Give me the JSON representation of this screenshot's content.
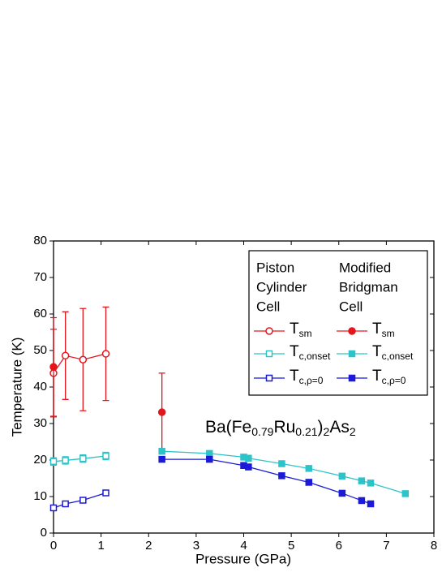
{
  "chart_data": {
    "type": "scatter",
    "xlabel": "Pressure (GPa)",
    "ylabel": "Temperature (K)",
    "xlim": [
      0,
      8
    ],
    "ylim": [
      0,
      80
    ],
    "xticks": [
      0,
      1,
      2,
      3,
      4,
      5,
      6,
      7,
      8
    ],
    "yticks": [
      0,
      10,
      20,
      30,
      40,
      50,
      60,
      70,
      80
    ],
    "annotation": {
      "parts": [
        "Ba(Fe",
        "0.79",
        "Ru",
        "0.21",
        ")",
        "2",
        "As",
        "2"
      ],
      "sub": [
        false,
        true,
        false,
        true,
        false,
        true,
        false,
        true
      ]
    },
    "legend_headers": [
      [
        "Piston",
        "Cylinder",
        "Cell"
      ],
      [
        "Modified",
        "Bridgman",
        "Cell"
      ]
    ],
    "series": [
      {
        "name": "T",
        "subscript": "sm",
        "group": 0,
        "marker": "circle",
        "filled": false,
        "line": true,
        "color": "#e3161c",
        "x": [
          0,
          0.25,
          0.62,
          1.1
        ],
        "values": [
          43.8,
          48.6,
          47.5,
          49.1
        ],
        "err": [
          12,
          12,
          14,
          12.8
        ]
      },
      {
        "name": "T",
        "subscript": "c,onset",
        "group": 0,
        "marker": "square",
        "filled": false,
        "line": true,
        "color": "#2cc4c8",
        "x": [
          0,
          0.25,
          0.62,
          1.1
        ],
        "values": [
          19.6,
          19.9,
          20.4,
          21.1
        ],
        "err": [
          1,
          1,
          1,
          1
        ]
      },
      {
        "name": "T",
        "subscript": "c,ρ=0",
        "group": 0,
        "marker": "square",
        "filled": false,
        "line": true,
        "color": "#1a1ad8",
        "x": [
          0,
          0.25,
          0.62,
          1.1
        ],
        "values": [
          6.9,
          8.0,
          9.0,
          11.0
        ]
      },
      {
        "name": "T",
        "subscript": "sm",
        "group": 1,
        "marker": "circle",
        "filled": true,
        "line": false,
        "color": "#e3161c",
        "x": [
          0,
          2.28
        ],
        "values": [
          45.5,
          33.1
        ],
        "err": [
          13.5,
          10.7
        ]
      },
      {
        "name": "T",
        "subscript": "c,onset",
        "group": 1,
        "marker": "square",
        "filled": true,
        "line": true,
        "color": "#2cc4c8",
        "x": [
          2.28,
          3.28,
          4.0,
          4.1,
          4.8,
          5.37,
          6.07,
          6.48,
          6.67,
          7.4
        ],
        "values": [
          22.4,
          21.8,
          20.8,
          20.5,
          19.0,
          17.7,
          15.6,
          14.3,
          13.7,
          10.8
        ]
      },
      {
        "name": "T",
        "subscript": "c,ρ=0",
        "group": 1,
        "marker": "square",
        "filled": true,
        "line": true,
        "color": "#1a1ad8",
        "x": [
          2.28,
          3.28,
          4.0,
          4.1,
          4.8,
          5.37,
          6.07,
          6.48,
          6.67
        ],
        "values": [
          20.2,
          20.2,
          18.5,
          18.1,
          15.7,
          13.9,
          10.9,
          8.9,
          8.0
        ]
      }
    ]
  }
}
